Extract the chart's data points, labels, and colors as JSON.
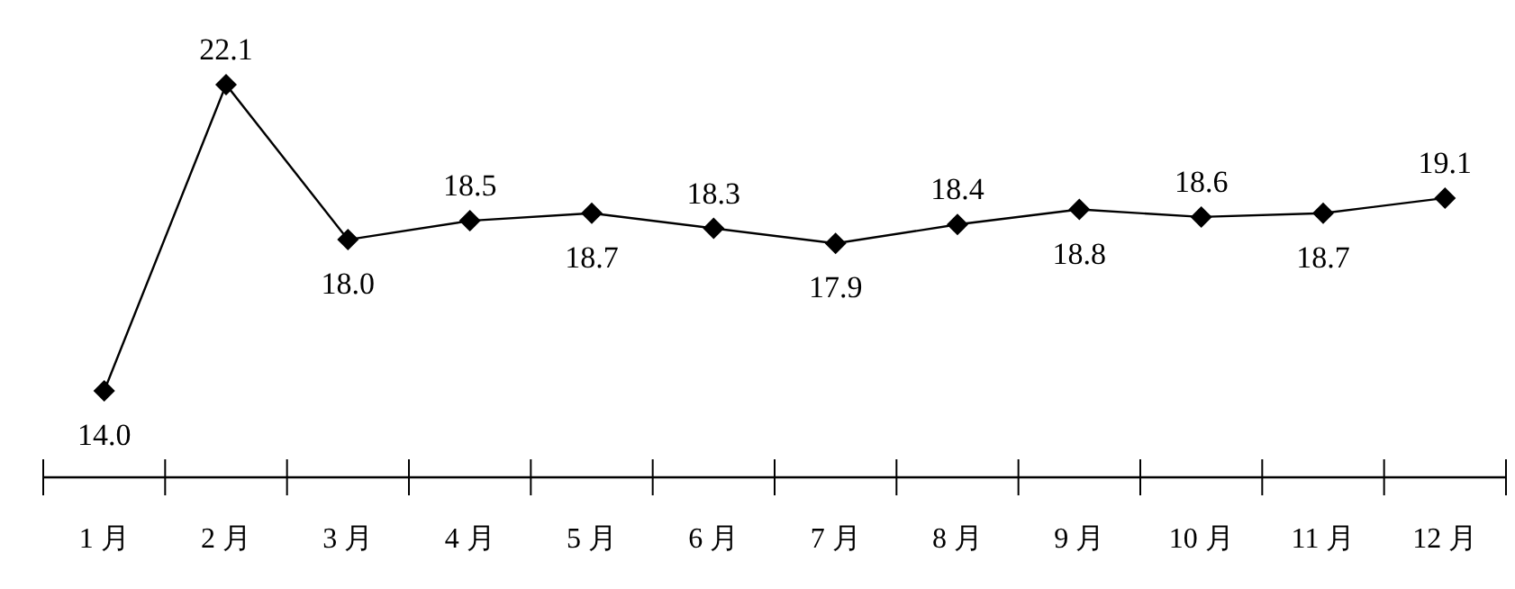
{
  "chart_data": {
    "type": "line",
    "categories": [
      "1 月",
      "2 月",
      "3 月",
      "4 月",
      "5 月",
      "6 月",
      "7 月",
      "8 月",
      "9 月",
      "10 月",
      "11 月",
      "12 月"
    ],
    "series": [
      {
        "color": "#000000",
        "values": [
          14.0,
          22.1,
          18.0,
          18.5,
          18.7,
          18.3,
          17.9,
          18.4,
          18.8,
          18.6,
          18.7,
          19.1
        ],
        "value_labels": [
          "14.0",
          "22.1",
          "18.0",
          "18.5",
          "18.7",
          "18.3",
          "17.9",
          "18.4",
          "18.8",
          "18.6",
          "18.7",
          "19.1"
        ]
      }
    ],
    "marker": "diamond",
    "line_style": "solid"
  }
}
